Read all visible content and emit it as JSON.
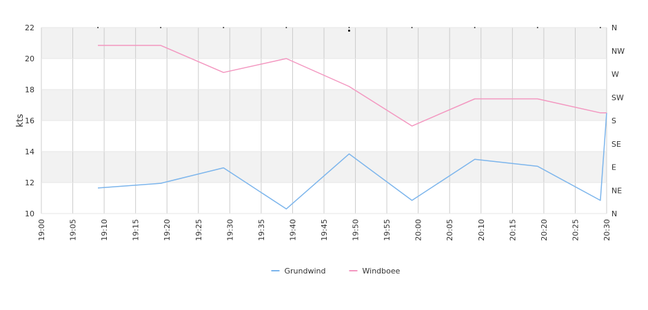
{
  "chart_data": {
    "type": "line",
    "ylabel": "kts",
    "ylim": [
      10,
      22
    ],
    "y_ticks": [
      "10",
      "12",
      "14",
      "16",
      "18",
      "20",
      "22"
    ],
    "x_ticks": [
      "19:00",
      "19:05",
      "19:10",
      "19:15",
      "19:20",
      "19:25",
      "19:30",
      "19:35",
      "19:40",
      "19:45",
      "19:50",
      "19:55",
      "20:00",
      "20:05",
      "20:10",
      "20:15",
      "20:20",
      "20:25",
      "20:30"
    ],
    "direction_ticks": [
      "N",
      "NW",
      "W",
      "SW",
      "S",
      "SE",
      "E",
      "NE",
      "N"
    ],
    "grid": true,
    "legend_position": "bottom",
    "series": [
      {
        "name": "Grundwind",
        "color": "#7cb5ec",
        "x": [
          "19:09",
          "19:19",
          "19:29",
          "19:39",
          "19:49",
          "19:59",
          "20:09",
          "20:19",
          "20:29",
          "20:30"
        ],
        "values": [
          11.65,
          11.95,
          12.95,
          10.3,
          13.85,
          10.85,
          13.5,
          13.05,
          10.85,
          16.5
        ]
      },
      {
        "name": "Windboee",
        "color": "#f397c0",
        "x": [
          "19:09",
          "19:19",
          "19:29",
          "19:39",
          "19:49",
          "19:59",
          "20:09",
          "20:19",
          "20:29",
          "20:30"
        ],
        "values": [
          20.85,
          20.85,
          19.1,
          20.0,
          18.2,
          15.65,
          17.4,
          17.4,
          16.5,
          16.5
        ]
      }
    ]
  }
}
